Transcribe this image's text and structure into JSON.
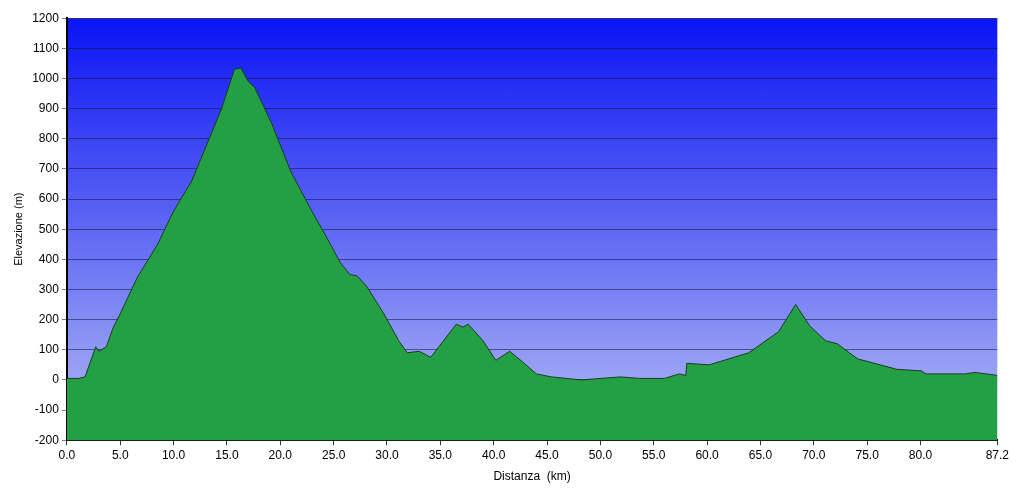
{
  "chart_data": {
    "type": "area",
    "xlabel": "Distanza  (km)",
    "ylabel": "Elevazione (m)",
    "x": [
      0,
      1.1,
      1.7,
      2.7,
      3.0,
      3.7,
      4.3,
      5.0,
      6.6,
      8.5,
      10,
      11.7,
      13.1,
      14.5,
      15.7,
      16.3,
      17,
      17.6,
      19.2,
      21,
      22.8,
      24.7,
      25.6,
      26.5,
      27.2,
      28.1,
      29.7,
      31.1,
      31.9,
      33,
      34.1,
      35.3,
      36.5,
      37.1,
      37.6,
      39,
      40.2,
      41.5,
      42.7,
      44,
      45.4,
      48.2,
      51.9,
      53.7,
      56,
      57.4,
      58,
      58.1,
      60.2,
      63.9,
      66.7,
      68.3,
      69.6,
      71.1,
      72.2,
      74.1,
      77.8,
      80.1,
      80.5,
      84.2,
      85.1,
      87.2
    ],
    "values": [
      5,
      5,
      10,
      110,
      95,
      110,
      170,
      220,
      340,
      450,
      560,
      660,
      780,
      900,
      1030,
      1035,
      990,
      970,
      850,
      690,
      570,
      450,
      390,
      350,
      345,
      310,
      220,
      130,
      90,
      95,
      75,
      130,
      185,
      175,
      185,
      130,
      65,
      95,
      60,
      20,
      10,
      0,
      10,
      5,
      5,
      20,
      15,
      55,
      50,
      90,
      160,
      250,
      180,
      130,
      120,
      70,
      35,
      30,
      20,
      20,
      25,
      15
    ],
    "color": "#22a043",
    "xlim": [
      0,
      87.2
    ],
    "ylim": [
      -200,
      1200
    ],
    "xticks": [
      {
        "value": 0,
        "label": "0.0"
      },
      {
        "value": 5,
        "label": "5.0"
      },
      {
        "value": 10,
        "label": "10.0"
      },
      {
        "value": 15,
        "label": "15.0"
      },
      {
        "value": 20,
        "label": "20.0"
      },
      {
        "value": 25,
        "label": "25.0"
      },
      {
        "value": 30,
        "label": "30.0"
      },
      {
        "value": 35,
        "label": "35.0"
      },
      {
        "value": 40,
        "label": "40.0"
      },
      {
        "value": 45,
        "label": "45.0"
      },
      {
        "value": 50,
        "label": "50.0"
      },
      {
        "value": 55,
        "label": "55.0"
      },
      {
        "value": 60,
        "label": "60.0"
      },
      {
        "value": 65,
        "label": "65.0"
      },
      {
        "value": 70,
        "label": "70.0"
      },
      {
        "value": 75,
        "label": "75.0"
      },
      {
        "value": 80,
        "label": "80.0"
      },
      87.2
    ],
    "yticks": [
      -200,
      -100,
      0,
      100,
      200,
      300,
      400,
      500,
      600,
      700,
      800,
      900,
      1000,
      1100,
      1200
    ],
    "grid": "y",
    "legend": false
  }
}
